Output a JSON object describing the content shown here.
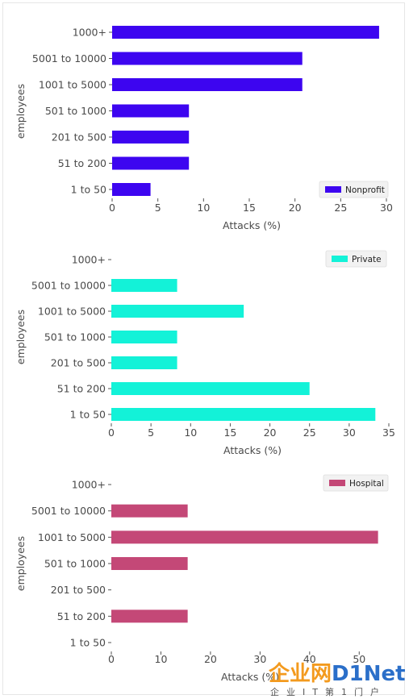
{
  "chart_data": [
    {
      "type": "bar",
      "orientation": "horizontal",
      "categories": [
        "1 to 50",
        "51 to 200",
        "201 to 500",
        "501 to 1000",
        "1001 to 5000",
        "5001 to 10000",
        "1000+"
      ],
      "series": [
        {
          "name": "Nonprofit",
          "values": [
            4.2,
            8.4,
            8.4,
            8.4,
            20.8,
            20.8,
            29.2
          ]
        }
      ],
      "xlabel": "Attacks (%)",
      "ylabel": "employees",
      "xlim": [
        0,
        30
      ],
      "xticks": [
        0,
        5,
        10,
        15,
        20,
        25,
        30
      ],
      "color": "#3d05f0",
      "legend": "bottom-right",
      "grid": false
    },
    {
      "type": "bar",
      "orientation": "horizontal",
      "categories": [
        "1 to 50",
        "51 to 200",
        "201 to 500",
        "501 to 1000",
        "1001 to 5000",
        "5001 to 10000",
        "1000+"
      ],
      "series": [
        {
          "name": "Private",
          "values": [
            33.3,
            25.0,
            8.3,
            8.3,
            16.7,
            8.3,
            0
          ]
        }
      ],
      "xlabel": "Attacks (%)",
      "ylabel": "employees",
      "xlim": [
        0,
        35
      ],
      "xticks": [
        0,
        5,
        10,
        15,
        20,
        25,
        30,
        35
      ],
      "color": "#13f2d8",
      "legend": "top-right",
      "grid": false
    },
    {
      "type": "bar",
      "orientation": "horizontal",
      "categories": [
        "1 to 50",
        "51 to 200",
        "201 to 500",
        "501 to 1000",
        "1001 to 5000",
        "5001 to 10000",
        "1000+"
      ],
      "series": [
        {
          "name": "Hospital",
          "values": [
            0,
            15.4,
            0,
            15.4,
            53.8,
            15.4,
            0
          ]
        }
      ],
      "xlabel": "Attacks (%)",
      "ylabel": "employees",
      "xlim": [
        0,
        55
      ],
      "xticks": [
        0,
        10,
        20,
        30,
        40,
        50
      ],
      "color": "#c44877",
      "legend": "top-right",
      "grid": false
    }
  ],
  "watermark": {
    "part_a": "企业网",
    "part_b": "D1Net",
    "subtitle": "企业IT第1门户"
  }
}
